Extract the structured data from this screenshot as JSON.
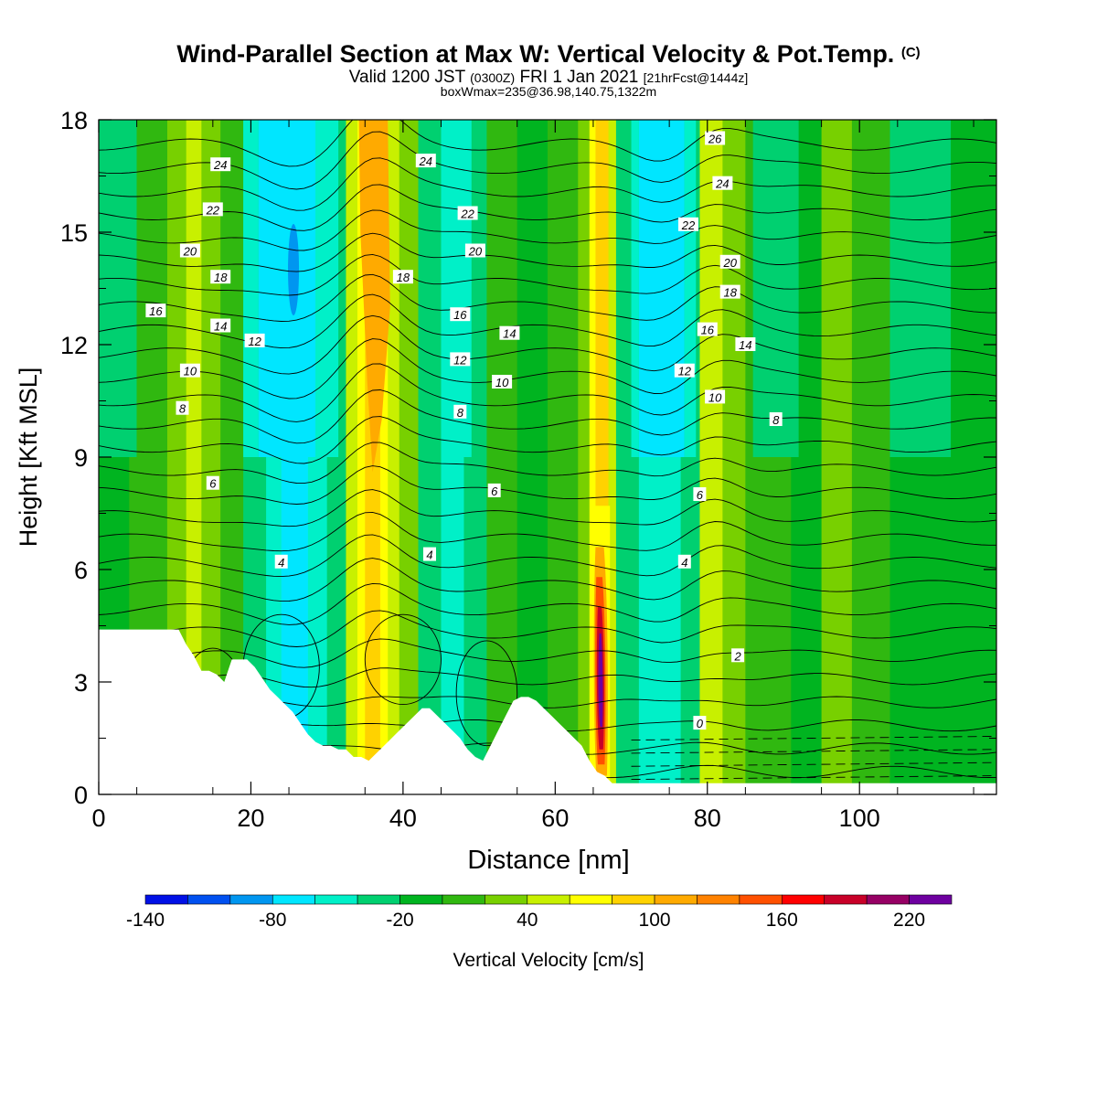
{
  "title": "Wind-Parallel Section at Max W: Vertical Velocity & Pot.Temp.",
  "title_tag": "(C)",
  "subtitle_valid": "Valid 1200 JST",
  "subtitle_z": "(0300Z)",
  "subtitle_date": "FRI 1 Jan 2021",
  "subtitle_fcst": "[21hrFcst@1444z]",
  "info": "boxWmax=235@36.98,140.75,1322m",
  "chart_data": {
    "type": "heatmap",
    "xlabel": "Distance [nm]",
    "ylabel": "Height [Kft MSL]",
    "xlim": [
      0,
      118
    ],
    "ylim": [
      0,
      18
    ],
    "x_ticks": [
      "0",
      "20",
      "40",
      "60",
      "80",
      "100"
    ],
    "y_ticks": [
      "0",
      "3",
      "6",
      "9",
      "12",
      "15",
      "18"
    ],
    "colorbar": {
      "label": "Vertical Velocity [cm/s]",
      "tick_labels": [
        "-140",
        "-80",
        "-20",
        "40",
        "100",
        "160",
        "220"
      ],
      "colors": [
        "#0010e6",
        "#0050f0",
        "#0096f0",
        "#00e6ff",
        "#00f0c8",
        "#00d070",
        "#00b420",
        "#30b810",
        "#78d000",
        "#c8f000",
        "#ffff00",
        "#ffd200",
        "#ffaa00",
        "#ff8200",
        "#ff5000",
        "#ff0000",
        "#c80028",
        "#960064",
        "#6e00a0"
      ]
    },
    "columns": [
      {
        "x": 12,
        "w": 10
      },
      {
        "x": 25.5,
        "w": -80
      },
      {
        "x": 36,
        "w": 130
      },
      {
        "x": 46,
        "w": -30
      },
      {
        "x": 66,
        "w": 235
      },
      {
        "x": 75,
        "w": -70
      },
      {
        "x": 81,
        "w": 50
      },
      {
        "x": 97,
        "w": 40
      }
    ],
    "contour_labels": [
      {
        "x": 16,
        "y": 16.8,
        "t": "24"
      },
      {
        "x": 43,
        "y": 16.9,
        "t": "24"
      },
      {
        "x": 82,
        "y": 16.3,
        "t": "24"
      },
      {
        "x": 81,
        "y": 17.5,
        "t": "26"
      },
      {
        "x": 15,
        "y": 15.6,
        "t": "22"
      },
      {
        "x": 48.5,
        "y": 15.5,
        "t": "22"
      },
      {
        "x": 77.5,
        "y": 15.2,
        "t": "22"
      },
      {
        "x": 12,
        "y": 14.5,
        "t": "20"
      },
      {
        "x": 49.5,
        "y": 14.5,
        "t": "20"
      },
      {
        "x": 83,
        "y": 14.2,
        "t": "20"
      },
      {
        "x": 16,
        "y": 13.8,
        "t": "18"
      },
      {
        "x": 40,
        "y": 13.8,
        "t": "18"
      },
      {
        "x": 83,
        "y": 13.4,
        "t": "18"
      },
      {
        "x": 7.5,
        "y": 12.9,
        "t": "16"
      },
      {
        "x": 47.5,
        "y": 12.8,
        "t": "16"
      },
      {
        "x": 80,
        "y": 12.4,
        "t": "16"
      },
      {
        "x": 16,
        "y": 12.5,
        "t": "14"
      },
      {
        "x": 54,
        "y": 12.3,
        "t": "14"
      },
      {
        "x": 85,
        "y": 12.0,
        "t": "14"
      },
      {
        "x": 20.5,
        "y": 12.1,
        "t": "12"
      },
      {
        "x": 47.5,
        "y": 11.6,
        "t": "12"
      },
      {
        "x": 77,
        "y": 11.3,
        "t": "12"
      },
      {
        "x": 12,
        "y": 11.3,
        "t": "10"
      },
      {
        "x": 53,
        "y": 11.0,
        "t": "10"
      },
      {
        "x": 81,
        "y": 10.6,
        "t": "10"
      },
      {
        "x": 11,
        "y": 10.3,
        "t": "8"
      },
      {
        "x": 47.5,
        "y": 10.2,
        "t": "8"
      },
      {
        "x": 89,
        "y": 10.0,
        "t": "8"
      },
      {
        "x": 15,
        "y": 8.3,
        "t": "6"
      },
      {
        "x": 52,
        "y": 8.1,
        "t": "6"
      },
      {
        "x": 79,
        "y": 8.0,
        "t": "6"
      },
      {
        "x": 24,
        "y": 6.2,
        "t": "4"
      },
      {
        "x": 43.5,
        "y": 6.4,
        "t": "4"
      },
      {
        "x": 77,
        "y": 6.2,
        "t": "4"
      },
      {
        "x": 84,
        "y": 3.7,
        "t": "2"
      },
      {
        "x": 79,
        "y": 1.9,
        "t": "0"
      }
    ],
    "terrain_kft": [
      [
        0,
        4.4
      ],
      [
        3.5,
        4.4
      ],
      [
        4.5,
        4.4
      ],
      [
        5.5,
        4.4
      ],
      [
        6.5,
        4.4
      ],
      [
        7.5,
        4.4
      ],
      [
        8.5,
        4.4
      ],
      [
        9.5,
        4.4
      ],
      [
        10.5,
        4.4
      ],
      [
        11,
        4.2
      ],
      [
        11.5,
        4.0
      ],
      [
        12.5,
        3.7
      ],
      [
        13.5,
        3.3
      ],
      [
        14.5,
        3.3
      ],
      [
        15.5,
        3.2
      ],
      [
        16.5,
        3.0
      ],
      [
        17.5,
        3.6
      ],
      [
        18.5,
        3.6
      ],
      [
        19.5,
        3.6
      ],
      [
        20.5,
        3.4
      ],
      [
        21.5,
        3.1
      ],
      [
        22.5,
        2.8
      ],
      [
        23.5,
        2.6
      ],
      [
        24.5,
        2.4
      ],
      [
        25.5,
        2.2
      ],
      [
        26.5,
        1.9
      ],
      [
        27.5,
        1.6
      ],
      [
        28.5,
        1.4
      ],
      [
        29.5,
        1.3
      ],
      [
        30.5,
        1.3
      ],
      [
        31.5,
        1.2
      ],
      [
        32.5,
        1.2
      ],
      [
        33.5,
        1.0
      ],
      [
        34.5,
        1.0
      ],
      [
        35.5,
        0.9
      ],
      [
        36.5,
        1.1
      ],
      [
        37.5,
        1.3
      ],
      [
        38.5,
        1.5
      ],
      [
        39.5,
        1.7
      ],
      [
        40.5,
        1.9
      ],
      [
        41.5,
        2.1
      ],
      [
        42.5,
        2.3
      ],
      [
        43.5,
        2.3
      ],
      [
        44.5,
        2.1
      ],
      [
        45.5,
        1.9
      ],
      [
        46.5,
        1.7
      ],
      [
        47.5,
        1.5
      ],
      [
        48.5,
        1.2
      ],
      [
        49.5,
        1.0
      ],
      [
        50.5,
        0.9
      ],
      [
        51.5,
        1.3
      ],
      [
        52.5,
        1.7
      ],
      [
        53.5,
        2.1
      ],
      [
        54.5,
        2.5
      ],
      [
        55.5,
        2.6
      ],
      [
        56.5,
        2.6
      ],
      [
        57.5,
        2.5
      ],
      [
        58.5,
        2.3
      ],
      [
        59.5,
        2.1
      ],
      [
        60.5,
        1.9
      ],
      [
        61.5,
        1.7
      ],
      [
        62.5,
        1.5
      ],
      [
        63.5,
        1.3
      ],
      [
        64.5,
        0.9
      ],
      [
        65.5,
        0.6
      ],
      [
        66.5,
        0.5
      ],
      [
        67.5,
        0.3
      ],
      [
        70,
        0.3
      ],
      [
        118,
        0.3
      ]
    ]
  }
}
